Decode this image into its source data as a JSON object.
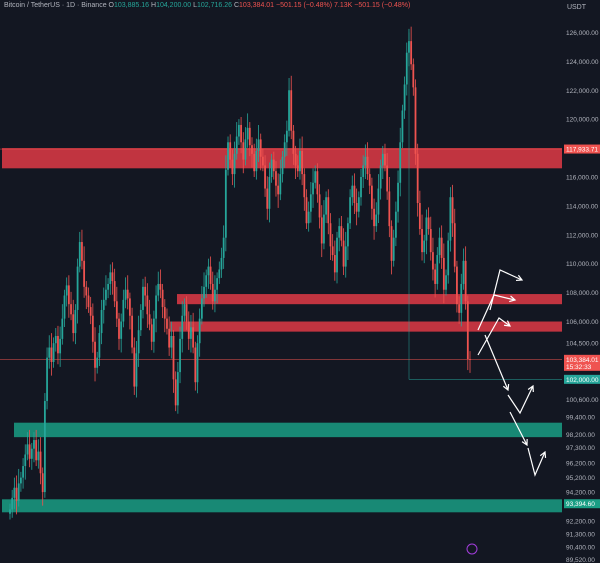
{
  "legend": {
    "symbol": "Bitcoin / TetherUS · 1D · Binance",
    "o_label": "O",
    "o_value": "103,885.16",
    "h_label": "H",
    "h_value": "104,200.00",
    "l_label": "L",
    "l_value": "102,716.26",
    "c_label": "C",
    "c_value": "103,384.01",
    "change": "−501.15 (−0.48%)",
    "volume": "7.13K",
    "change2": "−501.15 (−0.48%)"
  },
  "colors": {
    "background": "#131722",
    "up": "#26a69a",
    "down": "#ef5350",
    "resistance_zone": "#e03a45",
    "support_zone": "#1a9e84",
    "arrows": "#ffffff",
    "axis_text": "#b2b5be"
  },
  "chart_data": {
    "type": "candlestick",
    "title": "Bitcoin / TetherUS · 1D · Binance",
    "unit": "USDT",
    "ylim": [
      89500,
      127000
    ],
    "y_ticks": [
      "126,000.00",
      "124,000.00",
      "122,000.00",
      "120,000.00",
      "117,933.71",
      "116,000.00",
      "114,000.00",
      "112,000.00",
      "110,000.00",
      "108,000.00",
      "106,000.00",
      "104,500.00",
      "103,384.01",
      "102,000.00",
      "100,600.00",
      "99,400.00",
      "98,200.00",
      "97,300.00",
      "96,200.00",
      "95,200.00",
      "94,200.00",
      "93,394.60",
      "92,200.00",
      "91,300.00",
      "90,400.00",
      "89,520.00"
    ],
    "price_tags": [
      {
        "label": "117,933.71",
        "value": 117933.71,
        "color": "#ef5350"
      },
      {
        "label": "103,384.01",
        "value": 103384.01,
        "color": "#ef5350",
        "sub": "15:32:33"
      },
      {
        "label": "102,000.00",
        "value": 102000,
        "color": "#26a69a"
      },
      {
        "label": "93,394.60",
        "value": 93394.6,
        "color": "#1a9e84"
      }
    ],
    "horizontal_lines": [
      117933.71,
      103384.01,
      102000
    ],
    "zones": [
      {
        "kind": "resistance",
        "low": 116600,
        "high": 118000
      },
      {
        "kind": "resistance",
        "low": 107200,
        "high": 107900
      },
      {
        "kind": "resistance",
        "low": 105300,
        "high": 106000
      },
      {
        "kind": "support",
        "low": 98000,
        "high": 99000
      },
      {
        "kind": "support",
        "low": 92800,
        "high": 93700
      }
    ],
    "series_close": [
      93000,
      93800,
      94500,
      93600,
      94800,
      95200,
      96000,
      96800,
      97500,
      96500,
      97200,
      97800,
      96400,
      97000,
      95500,
      94200,
      100500,
      103500,
      104200,
      103200,
      104500,
      105000,
      103800,
      104800,
      106200,
      107800,
      108500,
      107200,
      106500,
      105200,
      106800,
      109800,
      111500,
      110200,
      108400,
      107800,
      107000,
      106400,
      104600,
      102800,
      103500,
      105200,
      106800,
      107500,
      108200,
      108600,
      109400,
      108800,
      107400,
      106200,
      104800,
      106000,
      107500,
      108200,
      107600,
      106400,
      104200,
      101500,
      103800,
      105400,
      106800,
      108400,
      107800,
      106500,
      105800,
      104600,
      106200,
      107800,
      108600,
      108200,
      107000,
      106200,
      105500,
      104200,
      105000,
      102000,
      100200,
      102500,
      104800,
      106400,
      107200,
      106000,
      104800,
      105600,
      104200,
      101800,
      104500,
      106200,
      107600,
      108400,
      109200,
      109800,
      108600,
      107400,
      108200,
      109000,
      109600,
      110400,
      111800,
      116500,
      118400,
      117200,
      116200,
      117600,
      118800,
      119600,
      118400,
      117200,
      118600,
      119400,
      118200,
      117600,
      116400,
      117800,
      118600,
      117400,
      116800,
      115200,
      113800,
      116000,
      117200,
      116400,
      115400,
      114800,
      116200,
      117400,
      118400,
      119200,
      122000,
      119200,
      117600,
      116800,
      116400,
      117800,
      116200,
      114600,
      112800,
      113600,
      114800,
      115600,
      116400,
      114800,
      113200,
      111400,
      113400,
      114600,
      112800,
      111200,
      110600,
      109400,
      111800,
      112600,
      111600,
      109800,
      111200,
      112800,
      114600,
      115400,
      114200,
      113600,
      114600,
      116000,
      116800,
      117400,
      116200,
      115400,
      113800,
      112600,
      113400,
      115200,
      116800,
      117600,
      116800,
      115000,
      112600,
      110200,
      111800,
      113600,
      115600,
      118400,
      120600,
      122400,
      124600,
      125400,
      123800,
      122200,
      117600,
      114200,
      112400,
      110800,
      111600,
      113200,
      112400,
      110800,
      109600,
      108600,
      110600,
      111800,
      110400,
      108200,
      109200,
      111600,
      114600,
      112800,
      109800,
      107200,
      106600,
      108600,
      110200,
      107400,
      103400,
      103384
    ],
    "projection_arrows_ptext": "projected path zigzag down to support"
  }
}
